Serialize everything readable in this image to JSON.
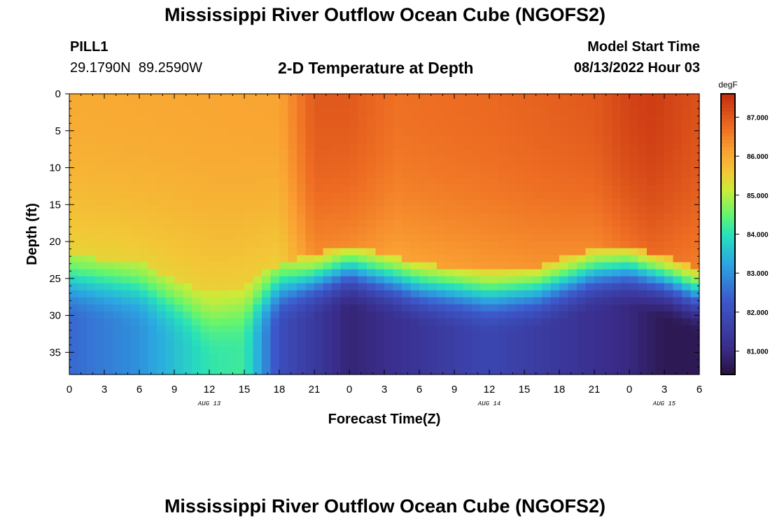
{
  "header": {
    "title": "Mississippi River Outflow Ocean Cube (NGOFS2)",
    "station": "PILL1",
    "lat": "29.1790N",
    "lon": "89.2590W",
    "subtitle": "2-D Temperature at Depth",
    "model_start_label": "Model Start Time",
    "model_start_value": "08/13/2022 Hour 03"
  },
  "footer": {
    "title": "Mississippi River Outflow Ocean Cube (NGOFS2)"
  },
  "chart_data": {
    "type": "heatmap",
    "title": "2-D Temperature at Depth",
    "xlabel": "Forecast Time(Z)",
    "ylabel": "Depth (ft)",
    "x_range": [
      0,
      54
    ],
    "x_unit": "hours since 08/13/2022 00Z",
    "x_ticks": [
      0,
      3,
      6,
      9,
      12,
      15,
      18,
      21,
      24,
      27,
      30,
      33,
      36,
      39,
      42,
      45,
      48,
      51,
      54
    ],
    "x_tick_labels": [
      "0",
      "3",
      "6",
      "9",
      "12",
      "15",
      "18",
      "21",
      "0",
      "3",
      "6",
      "9",
      "12",
      "15",
      "18",
      "21",
      "0",
      "3",
      "6"
    ],
    "date_labels": [
      {
        "x": 12,
        "text": "AUG 13"
      },
      {
        "x": 36,
        "text": "AUG 14"
      },
      {
        "x": 51,
        "text": "AUG 15"
      }
    ],
    "y_range": [
      0,
      38
    ],
    "y_ticks": [
      0,
      5,
      10,
      15,
      20,
      25,
      30,
      35
    ],
    "y_tick_labels": [
      "0",
      "5",
      "10",
      "15",
      "20",
      "25",
      "30",
      "35"
    ],
    "y_inverted": true,
    "colorbar": {
      "unit": "degF",
      "range": [
        80.4,
        87.6
      ],
      "ticks": [
        81.0,
        82.0,
        83.0,
        84.0,
        85.0,
        86.0,
        87.0
      ],
      "tick_labels": [
        "81.000",
        "82.000",
        "83.000",
        "84.000",
        "85.000",
        "86.000",
        "87.000"
      ]
    },
    "field_description": {
      "surface_temp_degF": [
        [
          0,
          86.0
        ],
        [
          18,
          86.1
        ],
        [
          21,
          87.0
        ],
        [
          24,
          87.0
        ],
        [
          28,
          86.7
        ],
        [
          36,
          86.8
        ],
        [
          45,
          87.0
        ],
        [
          48,
          87.3
        ],
        [
          50,
          87.4
        ],
        [
          54,
          87.1
        ]
      ],
      "thermocline_depth_ft": [
        [
          0,
          25
        ],
        [
          6,
          26
        ],
        [
          12,
          30
        ],
        [
          15,
          29
        ],
        [
          18,
          26
        ],
        [
          24,
          23.5
        ],
        [
          30,
          26
        ],
        [
          36,
          27
        ],
        [
          40,
          26.5
        ],
        [
          45,
          24
        ],
        [
          48,
          23.5
        ],
        [
          51,
          25
        ],
        [
          54,
          27
        ]
      ],
      "bottom_temp_degF": [
        [
          0,
          82.5
        ],
        [
          6,
          83.0
        ],
        [
          12,
          84.1
        ],
        [
          15,
          84.2
        ],
        [
          18,
          82.0
        ],
        [
          24,
          80.9
        ],
        [
          36,
          81.8
        ],
        [
          48,
          81.0
        ],
        [
          51,
          80.6
        ],
        [
          54,
          80.6
        ]
      ]
    }
  }
}
